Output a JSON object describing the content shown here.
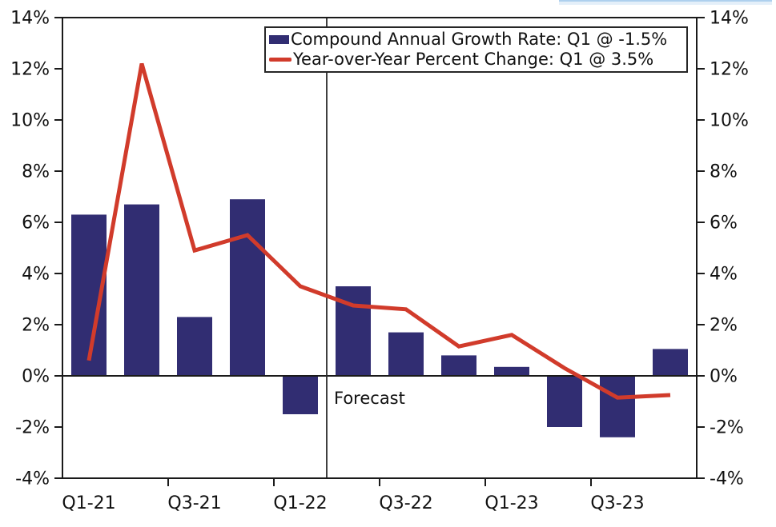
{
  "chart_data": {
    "type": "bar",
    "subtype": "bar+line dual-axis",
    "categories": [
      "Q1-21",
      "Q2-21",
      "Q3-21",
      "Q4-21",
      "Q1-22",
      "Q2-22",
      "Q3-22",
      "Q4-22",
      "Q1-23",
      "Q2-23",
      "Q3-23",
      "Q4-23"
    ],
    "series": [
      {
        "name": "Compound Annual Growth Rate",
        "type": "bar",
        "values": [
          6.3,
          6.7,
          2.3,
          6.9,
          -1.5,
          3.5,
          1.7,
          0.8,
          0.35,
          -2.0,
          -2.4,
          1.05
        ]
      },
      {
        "name": "Year-over-Year Percent Change",
        "type": "line",
        "values": [
          0.6,
          12.2,
          4.9,
          5.5,
          3.5,
          2.75,
          2.6,
          1.15,
          1.6,
          0.3,
          -0.85,
          -0.75
        ]
      }
    ],
    "title": "",
    "xlabel": "",
    "ylabel": "",
    "ylim": [
      -4,
      14
    ],
    "grid": "off",
    "dual_y_axis": true,
    "y_ticks": [
      {
        "value": 14,
        "label": "14%"
      },
      {
        "value": 12,
        "label": "12%"
      },
      {
        "value": 10,
        "label": "10%"
      },
      {
        "value": 8,
        "label": "8%"
      },
      {
        "value": 6,
        "label": "6%"
      },
      {
        "value": 4,
        "label": "4%"
      },
      {
        "value": 2,
        "label": "2%"
      },
      {
        "value": 0,
        "label": "0%"
      },
      {
        "value": -2,
        "label": "-2%"
      },
      {
        "value": -4,
        "label": "-4%"
      }
    ],
    "x_ticks": [
      {
        "slot": 0,
        "label": "Q1-21"
      },
      {
        "slot": 2,
        "label": "Q3-21"
      },
      {
        "slot": 4,
        "label": "Q1-22"
      },
      {
        "slot": 6,
        "label": "Q3-22"
      },
      {
        "slot": 8,
        "label": "Q1-23"
      },
      {
        "slot": 10,
        "label": "Q3-23"
      }
    ],
    "forecast": {
      "after_index": 4,
      "label": "Forecast"
    },
    "legend": {
      "position": "top-center",
      "entries": [
        {
          "swatch": "bar",
          "label": "Compound Annual Growth Rate: Q1 @ -1.5%"
        },
        {
          "swatch": "line",
          "label": "Year-over-Year Percent Change: Q1 @ 3.5%"
        }
      ]
    },
    "colors": {
      "bar": "#312D72",
      "line": "#D13B2B",
      "axis": "#1A1A1A",
      "text": "#111111"
    }
  }
}
